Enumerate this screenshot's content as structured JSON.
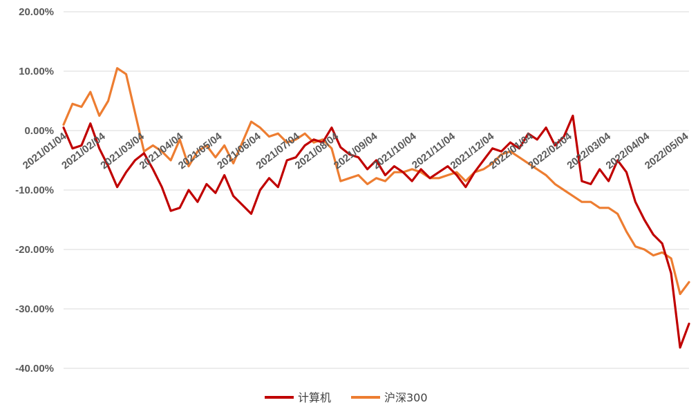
{
  "chart_data": {
    "type": "line",
    "title": "",
    "xlabel": "",
    "ylabel": "",
    "ylim": [
      -40,
      20
    ],
    "y_ticks": [
      20,
      10,
      0,
      -10,
      -20,
      -30,
      -40
    ],
    "y_tick_labels": [
      "20.00%",
      "10.00%",
      "0.00%",
      "-10.00%",
      "-20.00%",
      "-30.00%",
      "-40.00%"
    ],
    "x_ticks": [
      "2021/01/04",
      "2021/02/04",
      "2021/03/04",
      "2021/04/04",
      "2021/05/04",
      "2021/06/04",
      "2021/07/04",
      "2021/08/04",
      "2021/09/04",
      "2021/10/04",
      "2021/11/04",
      "2021/12/04",
      "2022/01/04",
      "2022/02/04",
      "2022/03/04",
      "2022/04/04",
      "2022/05/04"
    ],
    "grid": true,
    "legend_position": "bottom",
    "x": [
      "2021/01/04",
      "2021/01/11",
      "2021/01/18",
      "2021/01/25",
      "2021/02/01",
      "2021/02/08",
      "2021/02/15",
      "2021/02/22",
      "2021/03/01",
      "2021/03/08",
      "2021/03/15",
      "2021/03/22",
      "2021/03/29",
      "2021/04/05",
      "2021/04/12",
      "2021/04/19",
      "2021/04/26",
      "2021/05/03",
      "2021/05/10",
      "2021/05/17",
      "2021/05/24",
      "2021/05/31",
      "2021/06/07",
      "2021/06/14",
      "2021/06/21",
      "2021/06/28",
      "2021/07/05",
      "2021/07/12",
      "2021/07/19",
      "2021/07/26",
      "2021/08/02",
      "2021/08/09",
      "2021/08/16",
      "2021/08/23",
      "2021/08/30",
      "2021/09/06",
      "2021/09/13",
      "2021/09/20",
      "2021/09/27",
      "2021/10/04",
      "2021/10/11",
      "2021/10/18",
      "2021/10/25",
      "2021/11/01",
      "2021/11/08",
      "2021/11/15",
      "2021/11/22",
      "2021/11/29",
      "2021/12/06",
      "2021/12/13",
      "2021/12/20",
      "2021/12/27",
      "2022/01/03",
      "2022/01/10",
      "2022/01/17",
      "2022/01/24",
      "2022/01/31",
      "2022/02/07",
      "2022/02/14",
      "2022/02/21",
      "2022/02/28",
      "2022/03/07",
      "2022/03/14",
      "2022/03/21",
      "2022/03/28",
      "2022/04/04",
      "2022/04/11",
      "2022/04/18",
      "2022/04/25",
      "2022/05/02",
      "2022/05/09"
    ],
    "series": [
      {
        "name": "计算机",
        "color": "#c00000",
        "values": [
          0.5,
          -3.0,
          -2.5,
          1.2,
          -3.0,
          -6.0,
          -9.5,
          -7.0,
          -5.0,
          -3.8,
          -6.5,
          -9.5,
          -13.5,
          -13.0,
          -10.0,
          -12.0,
          -9.0,
          -10.5,
          -7.5,
          -11.0,
          -12.5,
          -14.0,
          -10.0,
          -8.0,
          -9.5,
          -5.0,
          -4.5,
          -2.5,
          -1.5,
          -2.0,
          0.5,
          -2.8,
          -4.0,
          -4.5,
          -6.5,
          -5.0,
          -7.5,
          -6.0,
          -7.0,
          -8.5,
          -6.5,
          -8.0,
          -7.0,
          -6.0,
          -7.5,
          -9.5,
          -7.0,
          -5.0,
          -3.0,
          -3.5,
          -2.0,
          -3.0,
          -0.5,
          -1.5,
          0.5,
          -2.5,
          -1.0,
          2.5,
          -8.5,
          -9.0,
          -6.5,
          -8.5,
          -5.0,
          -7.0,
          -12.0,
          -15.0,
          -17.5,
          -19.0,
          -24.0,
          -36.5,
          -32.5
        ]
      },
      {
        "name": "沪深300",
        "color": "#ed7d31",
        "values": [
          1.0,
          4.5,
          4.0,
          6.5,
          2.5,
          5.0,
          10.5,
          9.5,
          3.0,
          -3.5,
          -2.5,
          -3.5,
          -5.0,
          -1.5,
          -6.0,
          -3.5,
          -2.5,
          -4.5,
          -2.5,
          -5.5,
          -2.0,
          1.5,
          0.5,
          -1.0,
          -0.5,
          -2.0,
          -1.5,
          -0.5,
          -2.0,
          -1.5,
          -3.0,
          -8.5,
          -8.0,
          -7.5,
          -9.0,
          -8.0,
          -8.5,
          -7.0,
          -7.0,
          -6.5,
          -7.0,
          -8.0,
          -8.0,
          -7.5,
          -7.0,
          -8.5,
          -7.0,
          -6.5,
          -5.5,
          -4.0,
          -3.5,
          -4.5,
          -5.5,
          -6.5,
          -7.5,
          -9.0,
          -10.0,
          -11.0,
          -12.0,
          -12.0,
          -13.0,
          -13.0,
          -14.0,
          -17.0,
          -19.5,
          -20.0,
          -21.0,
          -20.5,
          -21.5,
          -27.5,
          -25.5
        ]
      }
    ]
  }
}
